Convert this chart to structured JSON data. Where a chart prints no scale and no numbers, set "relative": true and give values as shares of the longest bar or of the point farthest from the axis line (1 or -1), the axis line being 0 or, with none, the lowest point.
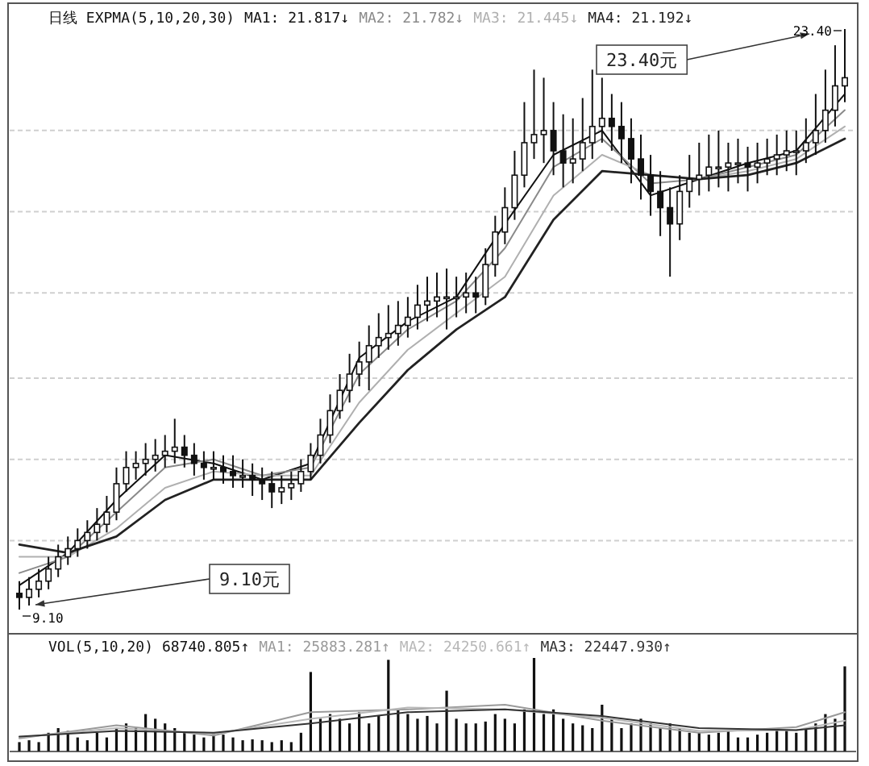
{
  "chart_data": [
    {
      "type": "candlestick",
      "title": "日线  EXPMA(5,10,20,30)",
      "tick_labels": false,
      "grid": "y",
      "categories": [
        null,
        null,
        null,
        null,
        null,
        null,
        null,
        null,
        null,
        null,
        null,
        null,
        null,
        null,
        null,
        null,
        null,
        null,
        null,
        null,
        null,
        null,
        null,
        null,
        null,
        null,
        null,
        null,
        null,
        null,
        null,
        null,
        null,
        null,
        null,
        null,
        null,
        null,
        null,
        null,
        null,
        null,
        null,
        null,
        null,
        null,
        null,
        null,
        null,
        null,
        null,
        null,
        null,
        null,
        null,
        null,
        null,
        null,
        null,
        null,
        null,
        null,
        null,
        null,
        null,
        null,
        null,
        null,
        null,
        null,
        null,
        null,
        null,
        null,
        null,
        null,
        null,
        null,
        null,
        null,
        null,
        null,
        null,
        null,
        null,
        null
      ],
      "ohlc": [
        [
          9.5,
          9.8,
          9.1,
          9.4
        ],
        [
          9.4,
          9.9,
          9.2,
          9.6
        ],
        [
          9.6,
          10.1,
          9.4,
          9.8
        ],
        [
          9.8,
          10.4,
          9.6,
          10.1
        ],
        [
          10.1,
          10.7,
          9.9,
          10.4
        ],
        [
          10.4,
          10.9,
          10.2,
          10.6
        ],
        [
          10.6,
          11.1,
          10.4,
          10.8
        ],
        [
          10.8,
          11.3,
          10.6,
          11.0
        ],
        [
          11.0,
          11.6,
          10.8,
          11.2
        ],
        [
          11.2,
          11.9,
          11.0,
          11.5
        ],
        [
          11.5,
          12.6,
          11.3,
          12.2
        ],
        [
          12.2,
          13.0,
          12.0,
          12.6
        ],
        [
          12.6,
          13.0,
          12.3,
          12.7
        ],
        [
          12.7,
          13.2,
          12.4,
          12.8
        ],
        [
          12.8,
          13.3,
          12.5,
          12.9
        ],
        [
          12.9,
          13.4,
          12.6,
          13.0
        ],
        [
          13.0,
          13.8,
          12.7,
          13.1
        ],
        [
          13.1,
          13.4,
          12.6,
          12.9
        ],
        [
          12.9,
          13.2,
          12.4,
          12.7
        ],
        [
          12.7,
          13.0,
          12.3,
          12.6
        ],
        [
          12.6,
          13.0,
          12.3,
          12.6
        ],
        [
          12.6,
          12.9,
          12.2,
          12.5
        ],
        [
          12.5,
          12.9,
          12.1,
          12.4
        ],
        [
          12.4,
          12.8,
          12.1,
          12.4
        ],
        [
          12.4,
          12.7,
          11.9,
          12.3
        ],
        [
          12.3,
          12.6,
          11.8,
          12.2
        ],
        [
          12.2,
          12.5,
          11.6,
          12.0
        ],
        [
          12.0,
          12.4,
          11.7,
          12.1
        ],
        [
          12.1,
          12.5,
          11.8,
          12.2
        ],
        [
          12.2,
          12.8,
          12.0,
          12.5
        ],
        [
          12.5,
          13.2,
          12.3,
          12.9
        ],
        [
          12.9,
          13.8,
          12.7,
          13.4
        ],
        [
          13.4,
          14.4,
          13.2,
          14.0
        ],
        [
          14.0,
          14.9,
          13.8,
          14.5
        ],
        [
          14.5,
          15.4,
          14.2,
          14.9
        ],
        [
          14.9,
          15.7,
          14.6,
          15.2
        ],
        [
          15.2,
          16.1,
          14.5,
          15.6
        ],
        [
          15.6,
          16.4,
          15.3,
          15.8
        ],
        [
          15.8,
          16.6,
          15.5,
          15.9
        ],
        [
          15.9,
          16.7,
          15.6,
          16.1
        ],
        [
          16.1,
          16.8,
          15.8,
          16.3
        ],
        [
          16.3,
          17.1,
          16.0,
          16.6
        ],
        [
          16.6,
          17.3,
          16.2,
          16.7
        ],
        [
          16.7,
          17.4,
          16.3,
          16.8
        ],
        [
          16.8,
          17.5,
          16.0,
          16.8
        ],
        [
          16.8,
          17.3,
          16.3,
          16.8
        ],
        [
          16.8,
          17.4,
          16.4,
          16.9
        ],
        [
          16.9,
          17.3,
          16.4,
          16.8
        ],
        [
          16.8,
          18.0,
          16.6,
          17.6
        ],
        [
          17.6,
          18.8,
          17.3,
          18.4
        ],
        [
          18.4,
          19.5,
          18.1,
          19.0
        ],
        [
          19.0,
          20.4,
          18.7,
          19.8
        ],
        [
          19.8,
          21.6,
          19.5,
          20.6
        ],
        [
          20.6,
          22.4,
          20.2,
          20.8
        ],
        [
          20.8,
          22.2,
          20.1,
          20.9
        ],
        [
          20.9,
          21.6,
          19.8,
          20.4
        ],
        [
          20.4,
          21.3,
          19.5,
          20.1
        ],
        [
          20.1,
          21.2,
          19.6,
          20.2
        ],
        [
          20.2,
          21.7,
          19.9,
          20.6
        ],
        [
          20.6,
          22.4,
          20.2,
          21.0
        ],
        [
          21.0,
          22.2,
          20.6,
          21.2
        ],
        [
          21.2,
          21.8,
          20.4,
          21.0
        ],
        [
          21.0,
          21.6,
          20.1,
          20.7
        ],
        [
          20.7,
          21.2,
          19.6,
          20.2
        ],
        [
          20.2,
          20.8,
          19.2,
          19.8
        ],
        [
          19.8,
          20.3,
          18.8,
          19.4
        ],
        [
          19.4,
          19.9,
          18.3,
          19.0
        ],
        [
          19.0,
          19.5,
          17.3,
          18.6
        ],
        [
          18.6,
          19.8,
          18.2,
          19.4
        ],
        [
          19.4,
          20.3,
          19.0,
          19.7
        ],
        [
          19.7,
          20.6,
          19.3,
          19.8
        ],
        [
          19.8,
          20.8,
          19.4,
          20.0
        ],
        [
          20.0,
          20.9,
          19.5,
          20.0
        ],
        [
          20.0,
          20.6,
          19.4,
          20.1
        ],
        [
          20.1,
          20.7,
          19.6,
          20.1
        ],
        [
          20.1,
          20.5,
          19.4,
          20.0
        ],
        [
          20.0,
          20.6,
          19.6,
          20.1
        ],
        [
          20.1,
          20.7,
          19.8,
          20.2
        ],
        [
          20.2,
          20.8,
          19.8,
          20.3
        ],
        [
          20.3,
          20.9,
          19.9,
          20.4
        ],
        [
          20.4,
          20.9,
          19.8,
          20.4
        ],
        [
          20.4,
          21.2,
          20.1,
          20.6
        ],
        [
          20.6,
          21.8,
          20.3,
          20.9
        ],
        [
          20.9,
          22.4,
          20.6,
          21.4
        ],
        [
          21.4,
          23.0,
          21.0,
          22.0
        ],
        [
          22.0,
          23.4,
          21.6,
          22.2
        ]
      ],
      "series": [
        {
          "type": "line",
          "name": "MA1: 21.817↓",
          "color": "#111111",
          "values": [
            9.7,
            null,
            null,
            null,
            null,
            10.5,
            null,
            null,
            null,
            null,
            11.8,
            null,
            null,
            null,
            null,
            12.9,
            null,
            null,
            null,
            null,
            12.7,
            null,
            null,
            null,
            null,
            12.3,
            null,
            null,
            null,
            null,
            12.7,
            null,
            null,
            null,
            null,
            15.3,
            null,
            null,
            null,
            null,
            16.2,
            null,
            null,
            null,
            null,
            16.8,
            null,
            null,
            null,
            null,
            18.6,
            null,
            null,
            null,
            null,
            20.3,
            null,
            null,
            null,
            null,
            20.9,
            null,
            null,
            null,
            null,
            19.3,
            null,
            null,
            null,
            null,
            19.7,
            null,
            null,
            null,
            null,
            20.1,
            null,
            null,
            null,
            null,
            20.4,
            null,
            null,
            null,
            null,
            21.8
          ]
        },
        {
          "type": "line",
          "name": "MA2: 21.782↓",
          "color": "#8a8a8a",
          "values": [
            10.0,
            null,
            null,
            null,
            null,
            10.4,
            null,
            null,
            null,
            null,
            11.5,
            null,
            null,
            null,
            null,
            12.6,
            null,
            null,
            null,
            null,
            12.8,
            null,
            null,
            null,
            null,
            12.4,
            null,
            null,
            null,
            null,
            12.6,
            null,
            null,
            null,
            null,
            14.9,
            null,
            null,
            null,
            null,
            16.0,
            null,
            null,
            null,
            null,
            16.7,
            null,
            null,
            null,
            null,
            18.0,
            null,
            null,
            null,
            null,
            20.0,
            null,
            null,
            null,
            null,
            20.7,
            null,
            null,
            null,
            null,
            19.6,
            null,
            null,
            null,
            null,
            19.7,
            null,
            null,
            null,
            null,
            20.0,
            null,
            null,
            null,
            null,
            20.3,
            null,
            null,
            null,
            null,
            21.4
          ]
        },
        {
          "type": "line",
          "name": "MA3: 21.445↓",
          "color": "#b0b0b0",
          "values": [
            10.4,
            null,
            null,
            null,
            null,
            10.4,
            null,
            null,
            null,
            null,
            11.1,
            null,
            null,
            null,
            null,
            12.1,
            null,
            null,
            null,
            null,
            12.5,
            null,
            null,
            null,
            null,
            12.4,
            null,
            null,
            null,
            null,
            12.4,
            null,
            null,
            null,
            null,
            14.2,
            null,
            null,
            null,
            null,
            15.5,
            null,
            null,
            null,
            null,
            16.4,
            null,
            null,
            null,
            null,
            17.3,
            null,
            null,
            null,
            null,
            19.3,
            null,
            null,
            null,
            null,
            20.3,
            null,
            null,
            null,
            null,
            19.8,
            null,
            null,
            null,
            null,
            19.7,
            null,
            null,
            null,
            null,
            19.9,
            null,
            null,
            null,
            null,
            20.2,
            null,
            null,
            null,
            null,
            21.0
          ]
        },
        {
          "type": "line",
          "name": "MA4: 21.192↓",
          "color": "#222222",
          "values": [
            10.7,
            null,
            null,
            null,
            null,
            10.5,
            null,
            null,
            null,
            null,
            10.9,
            null,
            null,
            null,
            null,
            11.8,
            null,
            null,
            null,
            null,
            12.3,
            null,
            null,
            null,
            null,
            12.3,
            null,
            null,
            null,
            null,
            12.3,
            null,
            null,
            null,
            null,
            13.7,
            null,
            null,
            null,
            null,
            15.0,
            null,
            null,
            null,
            null,
            16.0,
            null,
            null,
            null,
            null,
            16.8,
            null,
            null,
            null,
            null,
            18.7,
            null,
            null,
            null,
            null,
            19.9,
            null,
            null,
            null,
            null,
            19.8,
            null,
            null,
            null,
            null,
            19.7,
            null,
            null,
            null,
            null,
            19.8,
            null,
            null,
            null,
            null,
            20.1,
            null,
            null,
            null,
            null,
            20.7
          ]
        }
      ],
      "yticks": [
        {
          "value": 10.8,
          "label": null
        },
        {
          "value": 12.8,
          "label": null
        },
        {
          "value": 14.8,
          "label": null
        },
        {
          "value": 16.9,
          "label": null
        },
        {
          "value": 18.9,
          "label": null
        },
        {
          "value": 20.9,
          "label": null
        }
      ],
      "annotations": [
        "23.40元",
        "23.40",
        "9.10元",
        "9.10"
      ]
    },
    {
      "type": "bar",
      "relative": true,
      "title": "VOL(5,10,20) 68740.805↑",
      "tick_labels": false,
      "categories": [
        null,
        null,
        null,
        null,
        null,
        null,
        null,
        null,
        null,
        null,
        null,
        null,
        null,
        null,
        null,
        null,
        null,
        null,
        null,
        null,
        null,
        null,
        null,
        null,
        null,
        null,
        null,
        null,
        null,
        null,
        null,
        null,
        null,
        null,
        null,
        null,
        null,
        null,
        null,
        null,
        null,
        null,
        null,
        null,
        null,
        null,
        null,
        null,
        null,
        null,
        null,
        null,
        null,
        null,
        null,
        null,
        null,
        null,
        null,
        null,
        null,
        null,
        null,
        null,
        null,
        null,
        null,
        null,
        null,
        null,
        null,
        null,
        null,
        null,
        null,
        null,
        null,
        null,
        null,
        null,
        null,
        null,
        null,
        null,
        null,
        null
      ],
      "series": [
        {
          "type": "bar",
          "color": "#111111",
          "values": [
            0.1,
            0.12,
            0.1,
            0.2,
            0.25,
            0.22,
            0.15,
            0.12,
            0.2,
            0.15,
            0.25,
            0.3,
            0.25,
            0.4,
            0.35,
            0.3,
            0.25,
            0.2,
            0.18,
            0.15,
            0.2,
            0.18,
            0.15,
            0.12,
            0.13,
            0.12,
            0.1,
            0.12,
            0.1,
            0.2,
            0.85,
            0.35,
            0.4,
            0.35,
            0.3,
            0.42,
            0.3,
            0.38,
            0.98,
            0.45,
            0.4,
            0.35,
            0.38,
            0.3,
            0.65,
            0.35,
            0.3,
            0.3,
            0.32,
            0.4,
            0.35,
            0.3,
            0.45,
            1.0,
            0.4,
            0.45,
            0.35,
            0.3,
            0.28,
            0.25,
            0.5,
            0.35,
            0.25,
            0.3,
            0.35,
            0.3,
            0.25,
            0.3,
            0.25,
            0.2,
            0.2,
            0.18,
            0.2,
            0.22,
            0.15,
            0.15,
            0.18,
            0.2,
            0.25,
            0.22,
            0.2,
            0.25,
            0.3,
            0.4,
            0.35,
            0.91
          ]
        },
        {
          "type": "line",
          "name": "MA1: 25883.281↑",
          "color": "#9a9a9a",
          "values": [
            0.14,
            null,
            null,
            null,
            null,
            null,
            null,
            null,
            null,
            null,
            0.28,
            null,
            null,
            null,
            null,
            null,
            null,
            null,
            null,
            null,
            0.17,
            null,
            null,
            null,
            null,
            null,
            null,
            null,
            null,
            null,
            0.42,
            null,
            null,
            null,
            null,
            null,
            null,
            null,
            null,
            null,
            0.45,
            null,
            null,
            null,
            null,
            null,
            null,
            null,
            null,
            null,
            0.5,
            null,
            null,
            null,
            null,
            null,
            null,
            null,
            null,
            null,
            0.33,
            null,
            null,
            null,
            null,
            null,
            null,
            null,
            null,
            null,
            0.2,
            null,
            null,
            null,
            null,
            null,
            null,
            null,
            null,
            null,
            0.26,
            null,
            null,
            null,
            null,
            0.42
          ]
        },
        {
          "type": "line",
          "name": "MA2: 24250.661↑",
          "color": "#b8b8b8",
          "values": [
            0.15,
            null,
            null,
            null,
            null,
            null,
            null,
            null,
            null,
            null,
            0.25,
            null,
            null,
            null,
            null,
            null,
            null,
            null,
            null,
            null,
            0.19,
            null,
            null,
            null,
            null,
            null,
            null,
            null,
            null,
            null,
            0.35,
            null,
            null,
            null,
            null,
            null,
            null,
            null,
            null,
            null,
            0.47,
            null,
            null,
            null,
            null,
            null,
            null,
            null,
            null,
            null,
            0.45,
            null,
            null,
            null,
            null,
            null,
            null,
            null,
            null,
            null,
            0.36,
            null,
            null,
            null,
            null,
            null,
            null,
            null,
            null,
            null,
            0.22,
            null,
            null,
            null,
            null,
            null,
            null,
            null,
            null,
            null,
            0.23,
            null,
            null,
            null,
            null,
            0.33
          ]
        },
        {
          "type": "line",
          "name": "MA3: 22447.930↑",
          "color": "#333333",
          "values": [
            0.16,
            null,
            null,
            null,
            null,
            null,
            null,
            null,
            null,
            null,
            0.22,
            null,
            null,
            null,
            null,
            null,
            null,
            null,
            null,
            null,
            0.2,
            null,
            null,
            null,
            null,
            null,
            null,
            null,
            null,
            null,
            0.3,
            null,
            null,
            null,
            null,
            null,
            null,
            null,
            null,
            null,
            0.42,
            null,
            null,
            null,
            null,
            null,
            null,
            null,
            null,
            null,
            0.45,
            null,
            null,
            null,
            null,
            null,
            null,
            null,
            null,
            null,
            0.38,
            null,
            null,
            null,
            null,
            null,
            null,
            null,
            null,
            null,
            0.25,
            null,
            null,
            null,
            null,
            null,
            null,
            null,
            null,
            null,
            0.23,
            null,
            null,
            null,
            null,
            0.28
          ]
        }
      ]
    }
  ]
}
